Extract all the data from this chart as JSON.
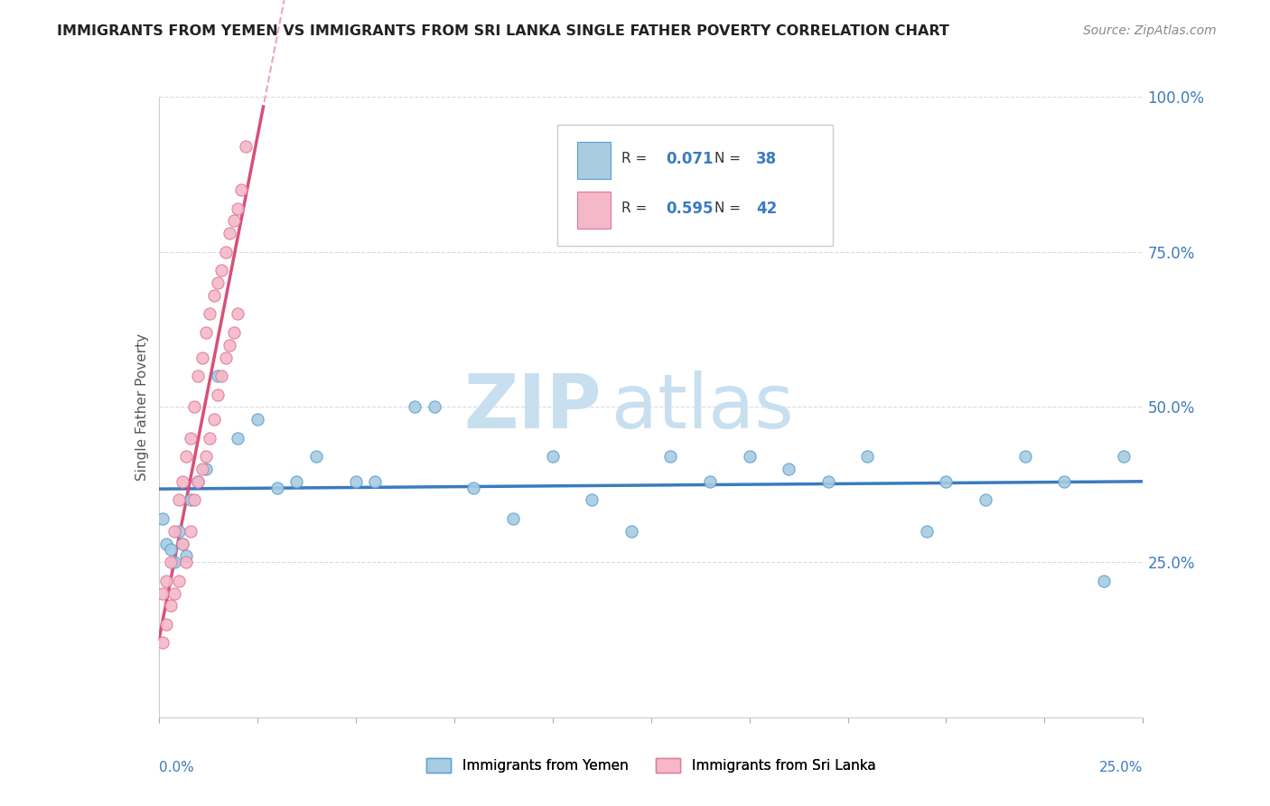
{
  "title": "IMMIGRANTS FROM YEMEN VS IMMIGRANTS FROM SRI LANKA SINGLE FATHER POVERTY CORRELATION CHART",
  "source": "Source: ZipAtlas.com",
  "ylabel": "Single Father Poverty",
  "color_yemen": "#a8cce0",
  "color_yemen_edge": "#5a9fd4",
  "color_yemen_line": "#3b7bbf",
  "color_srilanka": "#f5b8c8",
  "color_srilanka_edge": "#e07898",
  "color_srilanka_line": "#d94f78",
  "watermark_zip": "ZIP",
  "watermark_atlas": "atlas",
  "legend_label_yemen": "Immigrants from Yemen",
  "legend_label_srilanka": "Immigrants from Sri Lanka",
  "legend_yemen_R": "0.071",
  "legend_yemen_N": "38",
  "legend_srilanka_R": "0.595",
  "legend_srilanka_N": "42",
  "xlim": [
    0.0,
    0.25
  ],
  "ylim": [
    0.0,
    1.0
  ],
  "yticks": [
    0.0,
    0.25,
    0.5,
    0.75,
    1.0
  ],
  "ytick_labels": [
    "",
    "25.0%",
    "50.0%",
    "75.0%",
    "100.0%"
  ],
  "background_color": "#ffffff",
  "yemen_x": [
    0.001,
    0.002,
    0.003,
    0.004,
    0.005,
    0.006,
    0.007,
    0.008,
    0.01,
    0.012,
    0.015,
    0.018,
    0.02,
    0.025,
    0.03,
    0.035,
    0.04,
    0.05,
    0.065,
    0.07,
    0.08,
    0.09,
    0.1,
    0.11,
    0.12,
    0.13,
    0.15,
    0.17,
    0.18,
    0.19,
    0.2,
    0.21,
    0.22,
    0.23,
    0.24,
    0.245,
    0.004,
    0.003
  ],
  "yemen_y": [
    0.32,
    0.28,
    0.27,
    0.25,
    0.3,
    0.28,
    0.26,
    0.35,
    0.38,
    0.4,
    0.55,
    0.33,
    0.45,
    0.48,
    0.37,
    0.38,
    0.42,
    0.38,
    0.5,
    0.5,
    0.37,
    0.32,
    0.42,
    0.35,
    0.3,
    0.42,
    0.42,
    0.38,
    0.42,
    0.3,
    0.38,
    0.35,
    0.42,
    0.38,
    0.22,
    0.42,
    0.2,
    0.17
  ],
  "srilanka_x": [
    0.001,
    0.002,
    0.003,
    0.004,
    0.005,
    0.006,
    0.007,
    0.008,
    0.009,
    0.01,
    0.002,
    0.003,
    0.004,
    0.005,
    0.006,
    0.007,
    0.008,
    0.009,
    0.01,
    0.011,
    0.003,
    0.004,
    0.005,
    0.006,
    0.007,
    0.008,
    0.009,
    0.01,
    0.011,
    0.012,
    0.013,
    0.014,
    0.015,
    0.016,
    0.017,
    0.018,
    0.019,
    0.02,
    0.021,
    0.022,
    0.023,
    0.024
  ],
  "srilanka_y": [
    0.15,
    0.18,
    0.2,
    0.22,
    0.25,
    0.28,
    0.3,
    0.33,
    0.35,
    0.38,
    0.4,
    0.42,
    0.45,
    0.5,
    0.52,
    0.55,
    0.58,
    0.6,
    0.62,
    0.65,
    0.28,
    0.32,
    0.35,
    0.38,
    0.42,
    0.45,
    0.5,
    0.55,
    0.58,
    0.62,
    0.4,
    0.45,
    0.48,
    0.5,
    0.52,
    0.55,
    0.58,
    0.6,
    0.62,
    0.65,
    0.68,
    0.92
  ]
}
